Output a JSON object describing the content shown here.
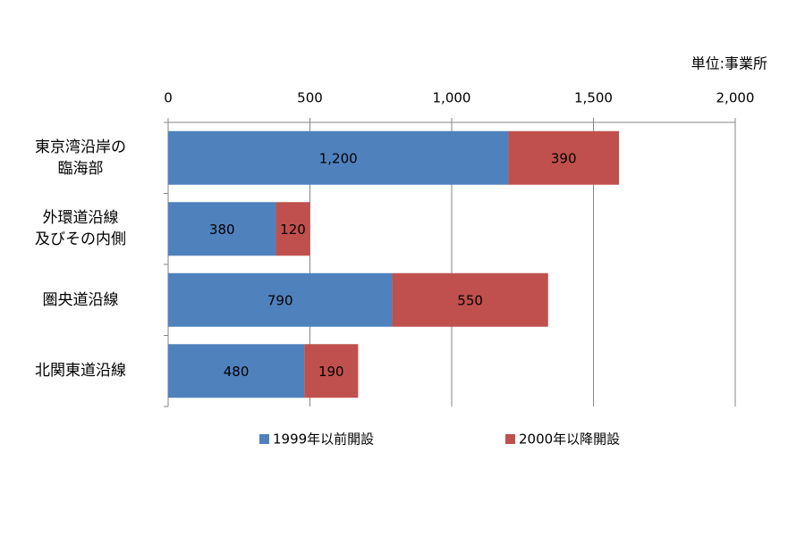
{
  "chart_data": {
    "type": "stacked_barh",
    "unit_label": "単位:事業所",
    "categories": [
      "東京湾沿岸の\n臨海部",
      "外環道沿線\n及びその内側",
      "圏央道沿線",
      "北関東道沿線"
    ],
    "series": [
      {
        "name": "1999年以前開設",
        "color": "#4f81bd",
        "values": [
          1200,
          380,
          790,
          480
        ],
        "value_labels": [
          "1,200",
          "380",
          "790",
          "480"
        ]
      },
      {
        "name": "2000年以降開設",
        "color": "#c0504d",
        "values": [
          390,
          120,
          550,
          190
        ]
      }
    ],
    "xlim": [
      0,
      2000
    ],
    "xticks": [
      0,
      500,
      {
        "value": 1000,
        "label": "1,000"
      },
      {
        "value": 1500,
        "label": "1,500"
      },
      {
        "value": 2000,
        "label": "2,000"
      }
    ],
    "grid": true,
    "legend": "bottom"
  }
}
